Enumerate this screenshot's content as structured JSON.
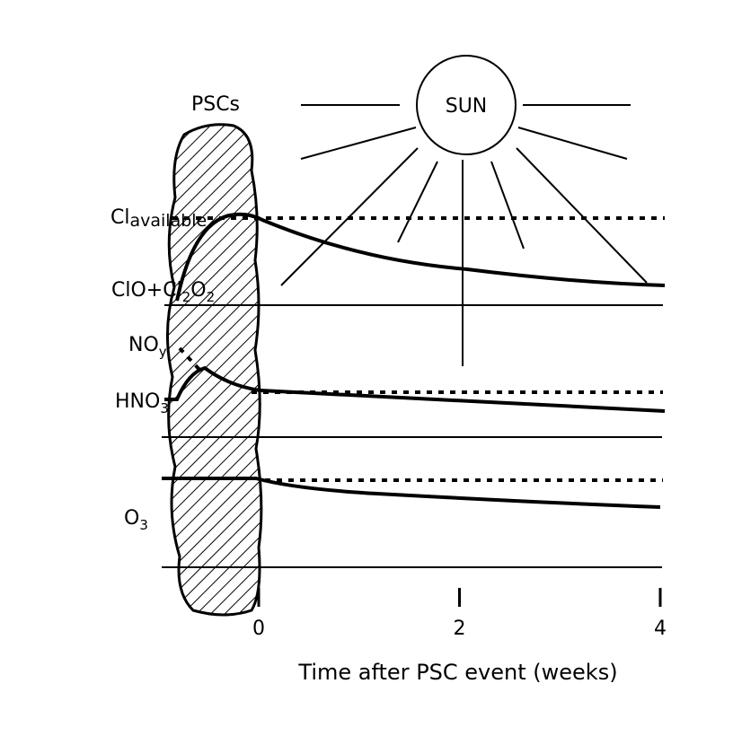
{
  "header": {
    "psc_label": "PSCs",
    "sun_label": "SUN"
  },
  "species": [
    {
      "segments": [
        {
          "text": "Cl"
        },
        {
          "text": "available",
          "small": true
        }
      ]
    },
    {
      "segments": [
        {
          "text": "ClO+Cl"
        },
        {
          "text": "2",
          "sub": true
        },
        {
          "text": "O"
        },
        {
          "text": "2",
          "sub": true
        }
      ]
    },
    {
      "segments": [
        {
          "text": "NO"
        },
        {
          "text": "y",
          "sub": true
        }
      ]
    },
    {
      "segments": [
        {
          "text": "HNO"
        },
        {
          "text": "3",
          "sub": true
        }
      ]
    },
    {
      "segments": [
        {
          "text": "O"
        },
        {
          "text": "3",
          "sub": true
        }
      ]
    }
  ],
  "x_axis": {
    "label": "Time after PSC event (weeks)",
    "ticks": [
      0,
      2,
      4
    ]
  }
}
